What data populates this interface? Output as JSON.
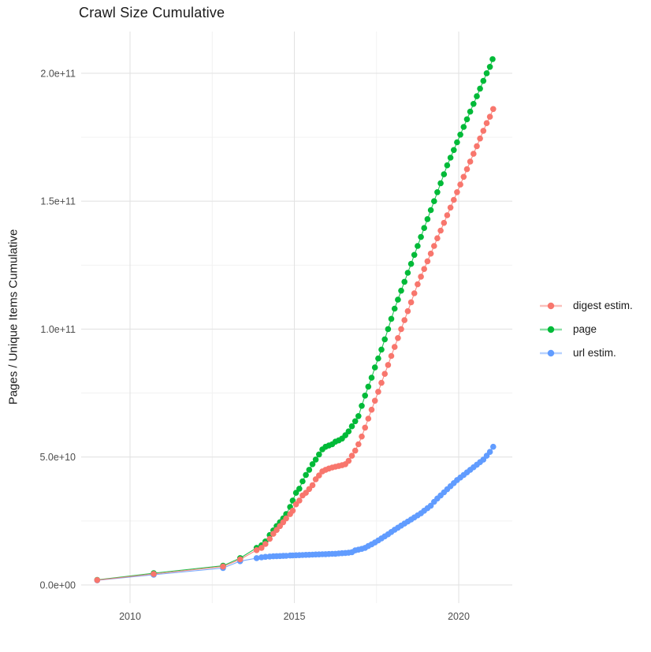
{
  "title": "Crawl Size Cumulative",
  "chart_data": {
    "type": "line",
    "subtype": "line-with-points",
    "title": "Crawl Size Cumulative",
    "xlabel": "",
    "ylabel": "Pages / Unique Items Cumulative",
    "grid": true,
    "legend_position": "right",
    "value_unit_multiplier": 1000000000,
    "value_unit_note": "series point values are in billions (1e9) of pages/items",
    "xlim": [
      2008.513,
      2021.63
    ],
    "ylim": [
      -7.1,
      216.3
    ],
    "x_ticks": [
      {
        "value": 2010,
        "label": "2010"
      },
      {
        "value": 2015,
        "label": "2015"
      },
      {
        "value": 2020,
        "label": "2020"
      }
    ],
    "x_minor_ticks": [
      2012.5,
      2017.5
    ],
    "y_ticks": [
      {
        "value": 0,
        "label": "0.0e+00"
      },
      {
        "value": 50,
        "label": "5.0e+10"
      },
      {
        "value": 100,
        "label": "1.0e+11"
      },
      {
        "value": 150,
        "label": "1.5e+11"
      },
      {
        "value": 200,
        "label": "2.0e+11"
      }
    ],
    "y_minor_ticks": [
      25,
      75,
      125,
      175
    ],
    "colors": {
      "digest_estim": "#F8766D",
      "page": "#00BA38",
      "url_estim": "#619CFF",
      "grid_major": "#e3e3e3",
      "grid_minor": "#f0f0f0",
      "tick_text": "#4d4d4d"
    },
    "series": [
      {
        "name": "digest estim.",
        "color": "#F8766D",
        "points": [
          [
            2009.0,
            1.9
          ],
          [
            2010.72,
            4.3
          ],
          [
            2012.83,
            7.2
          ],
          [
            2013.35,
            10.0
          ],
          [
            2013.85,
            13.6
          ],
          [
            2014.0,
            14.5
          ],
          [
            2014.12,
            16
          ],
          [
            2014.25,
            18
          ],
          [
            2014.36,
            20
          ],
          [
            2014.46,
            21.5
          ],
          [
            2014.56,
            23
          ],
          [
            2014.66,
            24.5
          ],
          [
            2014.75,
            26
          ],
          [
            2014.87,
            27.7
          ],
          [
            2014.95,
            29
          ],
          [
            2015.05,
            31.5
          ],
          [
            2015.15,
            33
          ],
          [
            2015.25,
            35
          ],
          [
            2015.35,
            36
          ],
          [
            2015.45,
            37.5
          ],
          [
            2015.55,
            39
          ],
          [
            2015.65,
            41.3
          ],
          [
            2015.75,
            42.8
          ],
          [
            2015.85,
            44.4
          ],
          [
            2015.95,
            45
          ],
          [
            2016.05,
            45.5
          ],
          [
            2016.15,
            45.9
          ],
          [
            2016.25,
            46.2
          ],
          [
            2016.35,
            46.5
          ],
          [
            2016.45,
            46.8
          ],
          [
            2016.55,
            47.2
          ],
          [
            2016.65,
            48.5
          ],
          [
            2016.75,
            50.5
          ],
          [
            2016.85,
            52.5
          ],
          [
            2016.95,
            55
          ],
          [
            2017.05,
            58
          ],
          [
            2017.15,
            61.5
          ],
          [
            2017.25,
            65
          ],
          [
            2017.35,
            68.5
          ],
          [
            2017.45,
            72
          ],
          [
            2017.55,
            75.5
          ],
          [
            2017.65,
            79
          ],
          [
            2017.75,
            82.5
          ],
          [
            2017.85,
            86
          ],
          [
            2017.95,
            89.5
          ],
          [
            2018.05,
            93
          ],
          [
            2018.15,
            96.5
          ],
          [
            2018.25,
            100
          ],
          [
            2018.35,
            103.5
          ],
          [
            2018.45,
            107
          ],
          [
            2018.55,
            110.5
          ],
          [
            2018.65,
            114
          ],
          [
            2018.75,
            117.5
          ],
          [
            2018.85,
            120.5
          ],
          [
            2018.95,
            123.5
          ],
          [
            2019.05,
            126.5
          ],
          [
            2019.15,
            129.5
          ],
          [
            2019.25,
            132.5
          ],
          [
            2019.35,
            135.5
          ],
          [
            2019.45,
            138.5
          ],
          [
            2019.55,
            141.5
          ],
          [
            2019.65,
            144.5
          ],
          [
            2019.75,
            147.5
          ],
          [
            2019.85,
            150.5
          ],
          [
            2019.95,
            153.5
          ],
          [
            2020.05,
            156.5
          ],
          [
            2020.15,
            159.5
          ],
          [
            2020.25,
            162.5
          ],
          [
            2020.35,
            165.5
          ],
          [
            2020.45,
            168.5
          ],
          [
            2020.55,
            171.5
          ],
          [
            2020.65,
            174.5
          ],
          [
            2020.75,
            177.5
          ],
          [
            2020.85,
            180.5
          ],
          [
            2020.95,
            183
          ],
          [
            2021.05,
            186
          ]
        ]
      },
      {
        "name": "page",
        "color": "#00BA38",
        "points": [
          [
            2009.0,
            2.0
          ],
          [
            2010.72,
            4.6
          ],
          [
            2012.83,
            7.5
          ],
          [
            2013.35,
            10.5
          ],
          [
            2013.85,
            14.5
          ],
          [
            2014.0,
            15.5
          ],
          [
            2014.12,
            17
          ],
          [
            2014.25,
            19.5
          ],
          [
            2014.36,
            21.3
          ],
          [
            2014.46,
            23
          ],
          [
            2014.56,
            24.5
          ],
          [
            2014.66,
            26
          ],
          [
            2014.75,
            27.7
          ],
          [
            2014.87,
            30.5
          ],
          [
            2014.95,
            33
          ],
          [
            2015.05,
            36
          ],
          [
            2015.15,
            37.6
          ],
          [
            2015.25,
            40.5
          ],
          [
            2015.35,
            43
          ],
          [
            2015.45,
            45
          ],
          [
            2015.55,
            47.2
          ],
          [
            2015.65,
            49
          ],
          [
            2015.75,
            51
          ],
          [
            2015.85,
            53
          ],
          [
            2015.95,
            54
          ],
          [
            2016.05,
            54.5
          ],
          [
            2016.15,
            55
          ],
          [
            2016.25,
            56
          ],
          [
            2016.35,
            56.5
          ],
          [
            2016.45,
            57.2
          ],
          [
            2016.55,
            58.5
          ],
          [
            2016.65,
            60
          ],
          [
            2016.75,
            62
          ],
          [
            2016.85,
            64
          ],
          [
            2016.95,
            66
          ],
          [
            2017.05,
            70
          ],
          [
            2017.15,
            74
          ],
          [
            2017.25,
            77.5
          ],
          [
            2017.35,
            81
          ],
          [
            2017.45,
            85
          ],
          [
            2017.55,
            88.5
          ],
          [
            2017.65,
            92
          ],
          [
            2017.75,
            96
          ],
          [
            2017.85,
            100
          ],
          [
            2017.95,
            104
          ],
          [
            2018.05,
            108
          ],
          [
            2018.15,
            111.5
          ],
          [
            2018.25,
            115
          ],
          [
            2018.35,
            118.5
          ],
          [
            2018.45,
            122
          ],
          [
            2018.55,
            125.5
          ],
          [
            2018.65,
            129
          ],
          [
            2018.75,
            132.5
          ],
          [
            2018.85,
            136
          ],
          [
            2018.95,
            139.5
          ],
          [
            2019.05,
            143
          ],
          [
            2019.15,
            146.5
          ],
          [
            2019.25,
            150
          ],
          [
            2019.35,
            153.5
          ],
          [
            2019.45,
            157
          ],
          [
            2019.55,
            160.5
          ],
          [
            2019.65,
            164
          ],
          [
            2019.75,
            167
          ],
          [
            2019.85,
            170
          ],
          [
            2019.95,
            173
          ],
          [
            2020.05,
            176
          ],
          [
            2020.15,
            179
          ],
          [
            2020.25,
            182
          ],
          [
            2020.35,
            185
          ],
          [
            2020.45,
            188
          ],
          [
            2020.55,
            191
          ],
          [
            2020.65,
            194
          ],
          [
            2020.75,
            197
          ],
          [
            2020.85,
            200
          ],
          [
            2020.95,
            202.5
          ],
          [
            2021.03,
            205.5
          ]
        ]
      },
      {
        "name": "url estim.",
        "color": "#619CFF",
        "points": [
          [
            2009.0,
            1.8
          ],
          [
            2010.72,
            4.0
          ],
          [
            2012.83,
            6.6
          ],
          [
            2013.35,
            9.3
          ],
          [
            2013.85,
            10.5
          ],
          [
            2014.0,
            10.8
          ],
          [
            2014.12,
            11.0
          ],
          [
            2014.25,
            11.1
          ],
          [
            2014.36,
            11.2
          ],
          [
            2014.46,
            11.25
          ],
          [
            2014.56,
            11.3
          ],
          [
            2014.66,
            11.35
          ],
          [
            2014.75,
            11.4
          ],
          [
            2014.87,
            11.5
          ],
          [
            2014.95,
            11.55
          ],
          [
            2015.05,
            11.6
          ],
          [
            2015.15,
            11.65
          ],
          [
            2015.25,
            11.7
          ],
          [
            2015.35,
            11.75
          ],
          [
            2015.45,
            11.8
          ],
          [
            2015.55,
            11.85
          ],
          [
            2015.65,
            11.9
          ],
          [
            2015.75,
            11.95
          ],
          [
            2015.85,
            12.0
          ],
          [
            2015.95,
            12.05
          ],
          [
            2016.05,
            12.1
          ],
          [
            2016.15,
            12.15
          ],
          [
            2016.25,
            12.2
          ],
          [
            2016.35,
            12.3
          ],
          [
            2016.45,
            12.4
          ],
          [
            2016.55,
            12.5
          ],
          [
            2016.65,
            12.6
          ],
          [
            2016.75,
            12.8
          ],
          [
            2016.85,
            13.5
          ],
          [
            2016.95,
            13.8
          ],
          [
            2017.05,
            14.1
          ],
          [
            2017.15,
            14.5
          ],
          [
            2017.25,
            15.2
          ],
          [
            2017.35,
            15.9
          ],
          [
            2017.45,
            16.6
          ],
          [
            2017.55,
            17.4
          ],
          [
            2017.65,
            18.2
          ],
          [
            2017.75,
            19.0
          ],
          [
            2017.85,
            19.8
          ],
          [
            2017.95,
            20.7
          ],
          [
            2018.05,
            21.6
          ],
          [
            2018.15,
            22.4
          ],
          [
            2018.25,
            23.2
          ],
          [
            2018.35,
            24.0
          ],
          [
            2018.45,
            24.8
          ],
          [
            2018.55,
            25.6
          ],
          [
            2018.65,
            26.4
          ],
          [
            2018.75,
            27.2
          ],
          [
            2018.85,
            28.0
          ],
          [
            2018.95,
            29.0
          ],
          [
            2019.05,
            30.0
          ],
          [
            2019.15,
            31.0
          ],
          [
            2019.25,
            32.5
          ],
          [
            2019.35,
            33.8
          ],
          [
            2019.45,
            35.0
          ],
          [
            2019.55,
            36.2
          ],
          [
            2019.65,
            37.4
          ],
          [
            2019.75,
            38.6
          ],
          [
            2019.85,
            39.8
          ],
          [
            2019.95,
            41.0
          ],
          [
            2020.05,
            42.0
          ],
          [
            2020.15,
            43.0
          ],
          [
            2020.25,
            44.0
          ],
          [
            2020.35,
            45.0
          ],
          [
            2020.45,
            46.0
          ],
          [
            2020.55,
            47.0
          ],
          [
            2020.65,
            48.0
          ],
          [
            2020.75,
            49.0
          ],
          [
            2020.85,
            50.5
          ],
          [
            2020.95,
            52.0
          ],
          [
            2021.05,
            54.0
          ]
        ]
      }
    ]
  }
}
